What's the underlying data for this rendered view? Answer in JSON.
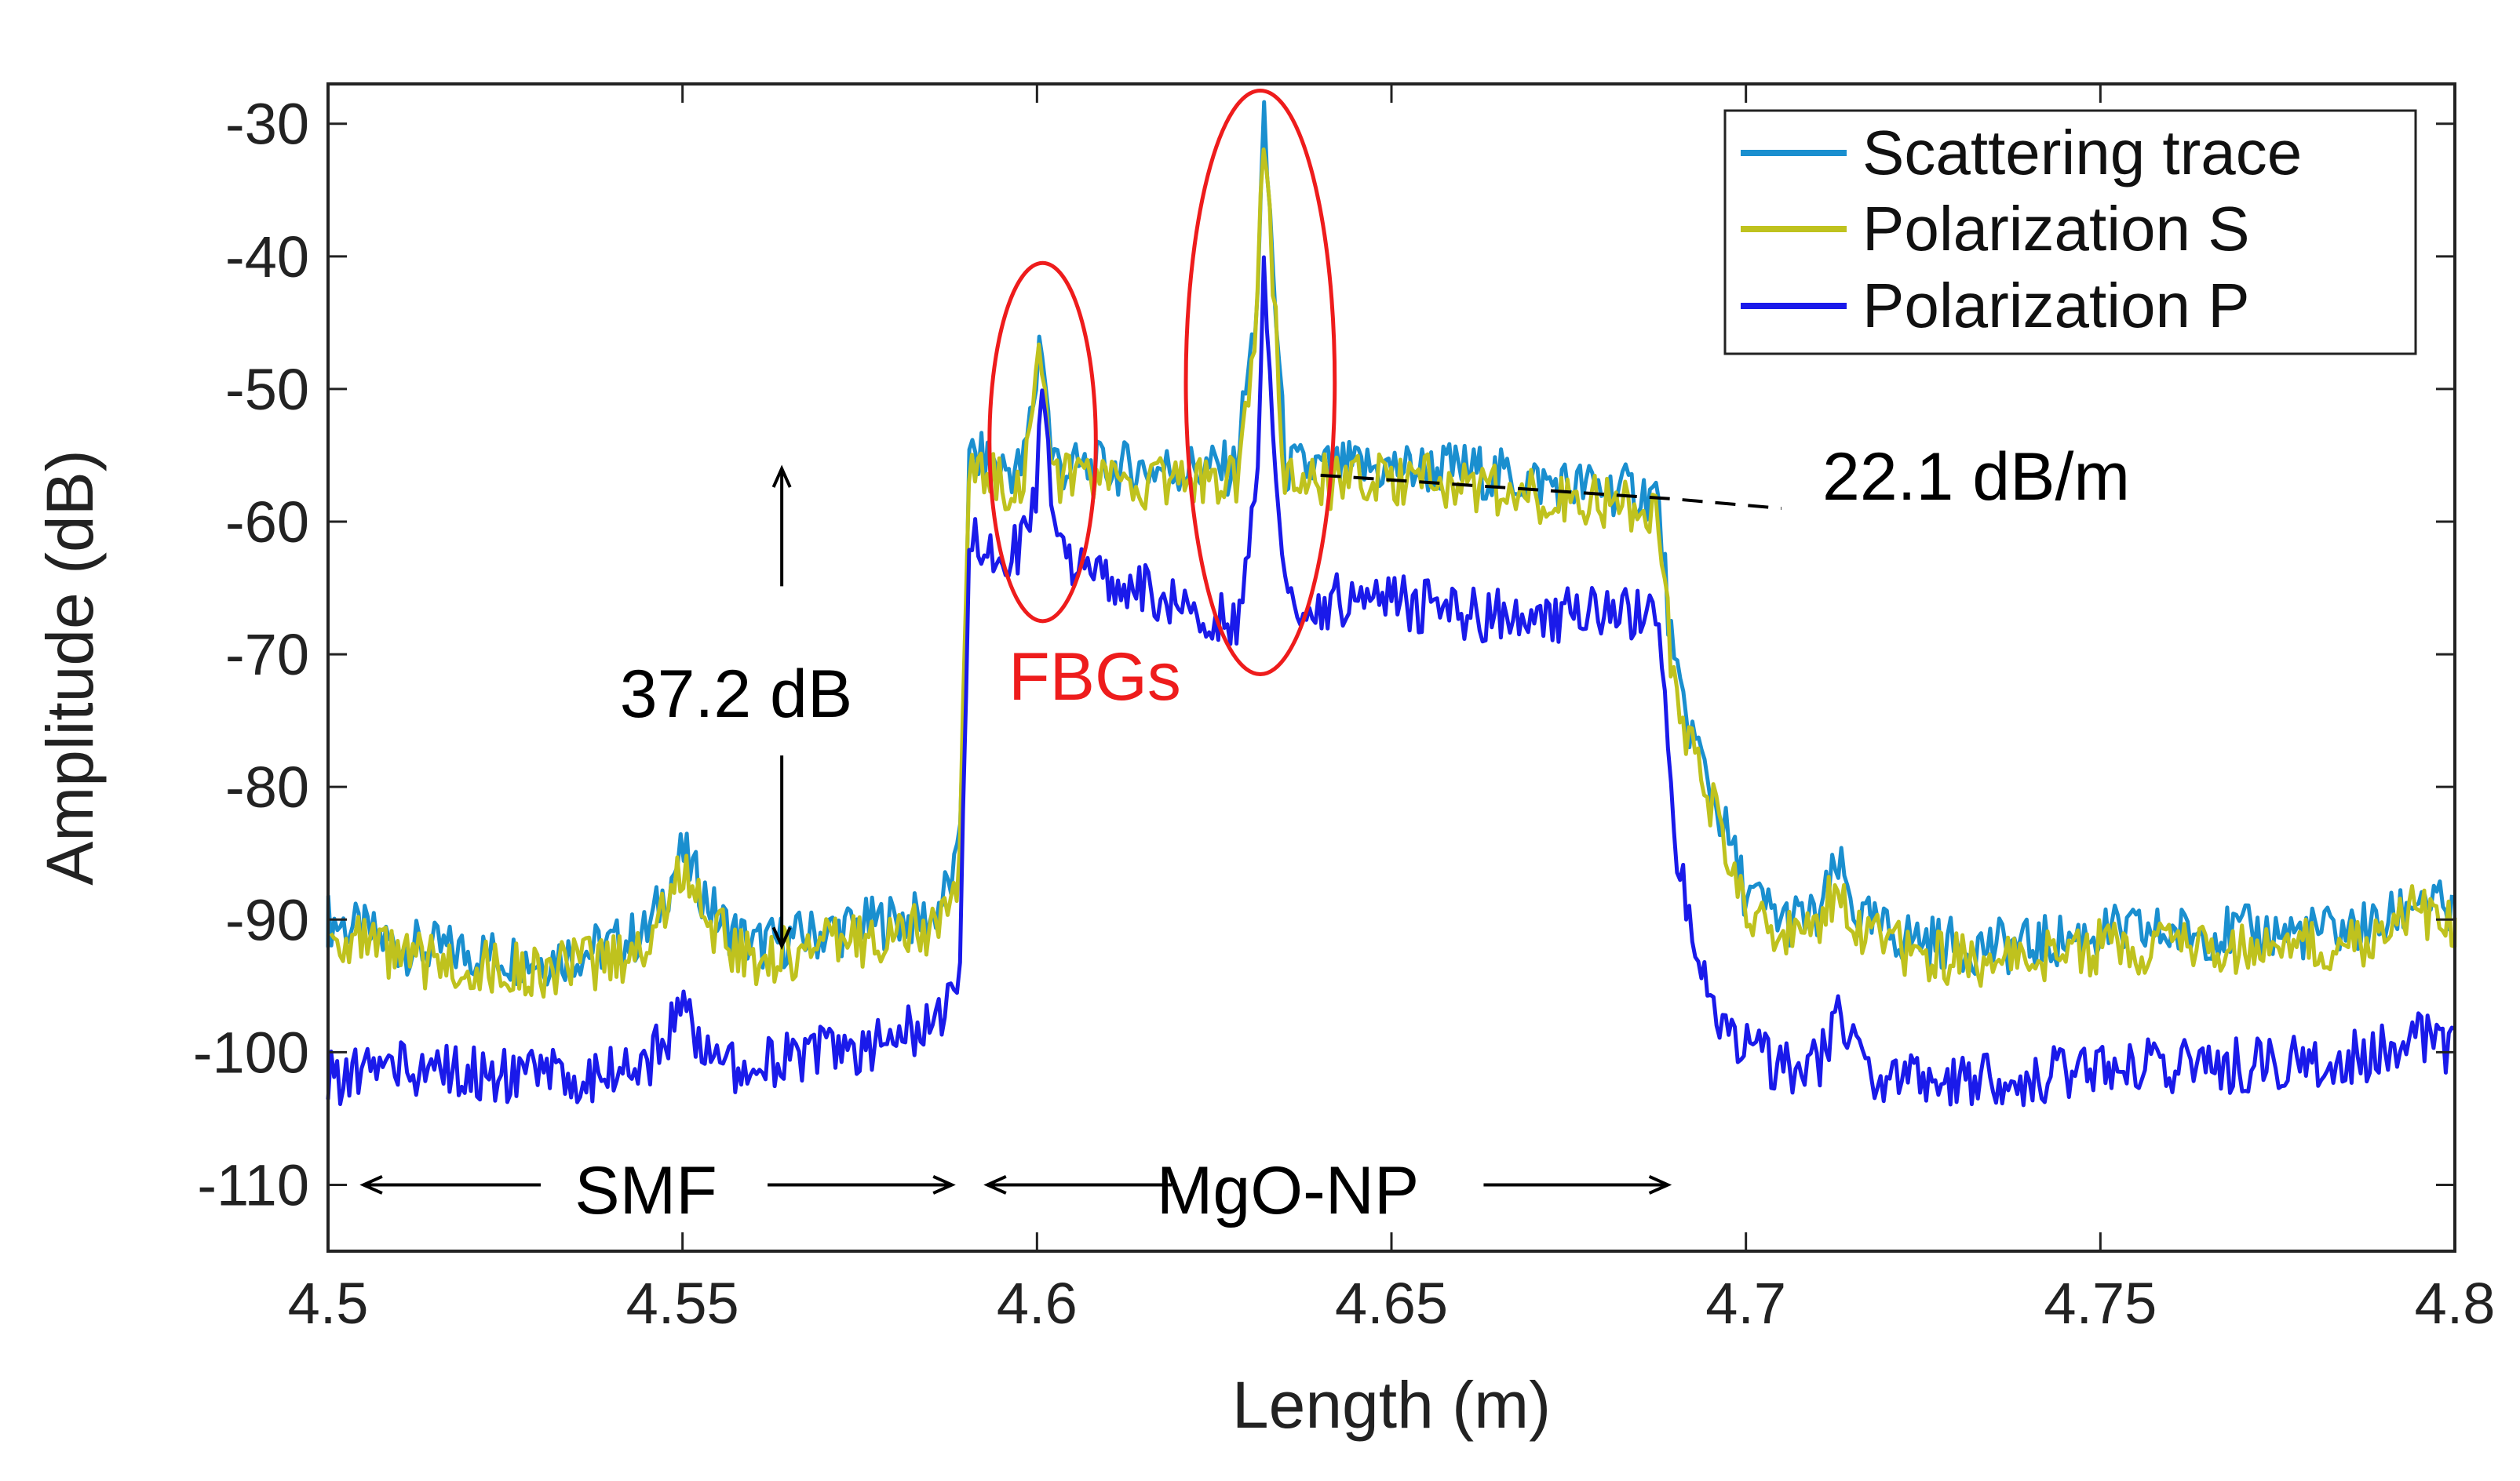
{
  "chart_data": {
    "type": "line",
    "title": "",
    "xlabel": "Length (m)",
    "ylabel": "Amplitude (dB)",
    "xlim": [
      4.5,
      4.8
    ],
    "ylim": [
      -115,
      -27
    ],
    "xticks": [
      4.5,
      4.55,
      4.6,
      4.65,
      4.7,
      4.75,
      4.8
    ],
    "xtick_labels": [
      "4.5",
      "4.55",
      "4.6",
      "4.65",
      "4.7",
      "4.75",
      "4.8"
    ],
    "yticks": [
      -30,
      -40,
      -50,
      -60,
      -70,
      -80,
      -90,
      -100,
      -110
    ],
    "ytick_labels": [
      "-30",
      "-40",
      "-50",
      "-60",
      "-70",
      "-80",
      "-90",
      "-100",
      "-110"
    ],
    "grid": false,
    "legend_position": "top-right",
    "series": [
      {
        "name": "Scattering trace",
        "color": "#1a8fcf",
        "x": [
          4.5,
          4.51,
          4.52,
          4.53,
          4.54,
          4.545,
          4.55,
          4.555,
          4.56,
          4.57,
          4.58,
          4.585,
          4.589,
          4.5905,
          4.595,
          4.598,
          4.6,
          4.6005,
          4.601,
          4.602,
          4.604,
          4.61,
          4.62,
          4.628,
          4.631,
          4.632,
          4.633,
          4.635,
          4.64,
          4.65,
          4.66,
          4.67,
          4.68,
          4.6875,
          4.69,
          4.695,
          4.7,
          4.705,
          4.71,
          4.713,
          4.716,
          4.72,
          4.73,
          4.74,
          4.75,
          4.76,
          4.77,
          4.78,
          4.79,
          4.795,
          4.8
        ],
        "y": [
          -90,
          -92,
          -92.5,
          -93,
          -92,
          -91,
          -85,
          -90,
          -92,
          -91,
          -90,
          -90,
          -86,
          -55,
          -56,
          -56,
          -49,
          -45,
          -48,
          -55,
          -56,
          -56,
          -56,
          -56,
          -44,
          -30,
          -38,
          -56,
          -56,
          -56,
          -56,
          -57,
          -57.5,
          -58,
          -72,
          -80,
          -88,
          -90,
          -90,
          -86,
          -90,
          -91,
          -92,
          -92,
          -91,
          -91,
          -91,
          -91,
          -90.5,
          -88,
          -90
        ]
      },
      {
        "name": "Polarization S",
        "color": "#bfc21e",
        "x": [
          4.5,
          4.51,
          4.52,
          4.53,
          4.54,
          4.545,
          4.55,
          4.555,
          4.56,
          4.57,
          4.58,
          4.585,
          4.589,
          4.5905,
          4.595,
          4.598,
          4.6,
          4.6005,
          4.601,
          4.602,
          4.604,
          4.61,
          4.62,
          4.628,
          4.631,
          4.632,
          4.633,
          4.635,
          4.64,
          4.65,
          4.66,
          4.67,
          4.68,
          4.6875,
          4.69,
          4.695,
          4.7,
          4.705,
          4.71,
          4.713,
          4.716,
          4.72,
          4.73,
          4.74,
          4.75,
          4.76,
          4.77,
          4.78,
          4.79,
          4.795,
          4.8
        ],
        "y": [
          -91,
          -93,
          -93.5,
          -94,
          -93,
          -92,
          -86,
          -91,
          -93,
          -92,
          -91,
          -91,
          -87,
          -56,
          -57,
          -57,
          -50,
          -46,
          -49,
          -56,
          -57,
          -57,
          -57,
          -57,
          -45,
          -30,
          -39,
          -57,
          -57,
          -57,
          -57,
          -58,
          -58.5,
          -59,
          -73,
          -81,
          -89,
          -91,
          -91,
          -87,
          -91,
          -92,
          -93,
          -93,
          -92,
          -92,
          -92,
          -92,
          -91.5,
          -89,
          -91
        ]
      },
      {
        "name": "Polarization P",
        "color": "#1a1aea",
        "x": [
          4.5,
          4.51,
          4.52,
          4.53,
          4.54,
          4.545,
          4.55,
          4.555,
          4.56,
          4.57,
          4.58,
          4.585,
          4.589,
          4.5905,
          4.595,
          4.598,
          4.6,
          4.6005,
          4.601,
          4.602,
          4.604,
          4.61,
          4.62,
          4.628,
          4.631,
          4.632,
          4.633,
          4.635,
          4.64,
          4.65,
          4.66,
          4.67,
          4.68,
          4.6875,
          4.69,
          4.695,
          4.7,
          4.705,
          4.71,
          4.713,
          4.716,
          4.72,
          4.73,
          4.74,
          4.75,
          4.76,
          4.77,
          4.78,
          4.79,
          4.795,
          4.8
        ],
        "y": [
          -102,
          -101,
          -101.5,
          -102,
          -101.5,
          -101,
          -97,
          -101,
          -101,
          -100,
          -99,
          -98,
          -95,
          -61,
          -62,
          -62,
          -58,
          -52,
          -50,
          -60,
          -63,
          -64,
          -66,
          -68,
          -56,
          -42,
          -50,
          -66,
          -66,
          -66,
          -67,
          -67,
          -67,
          -67,
          -85,
          -96,
          -100,
          -101,
          -101,
          -97,
          -101,
          -102,
          -102,
          -102,
          -101,
          -101,
          -101,
          -100.5,
          -100,
          -99,
          -100
        ]
      }
    ],
    "annotations": {
      "dynamic_range": "37.2 dB",
      "fbg_label": "FBGs",
      "slope": "22.1 dB/m",
      "smf_label": "SMF",
      "mgo_label": "MgO-NP"
    },
    "annotation_data": {
      "dynamic_range_arrow": {
        "x": 4.564,
        "y_top": -56,
        "y_bottom": -92
      },
      "slope_line": {
        "x": [
          4.64,
          4.69,
          4.705
        ],
        "y": [
          -56.5,
          -58.3,
          -59
        ]
      },
      "fbg_ellipses": [
        {
          "x": 4.6008,
          "y": -54,
          "rx": 0.0075,
          "ry": 13.5
        },
        {
          "x": 4.6315,
          "y": -49.5,
          "rx": 0.0105,
          "ry": 22
        }
      ],
      "smf_arrows": {
        "y": -110,
        "left": [
          4.505,
          4.53
        ],
        "right": [
          4.562,
          4.588
        ]
      },
      "mgo_arrows": {
        "y": -110,
        "left": [
          4.593,
          4.619
        ],
        "right": [
          4.663,
          4.689
        ]
      }
    }
  }
}
